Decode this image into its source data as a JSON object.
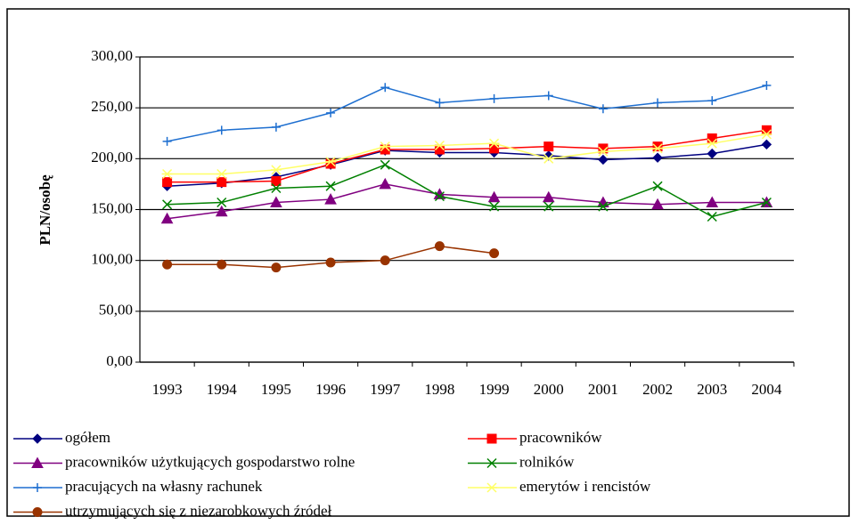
{
  "chart_data": {
    "type": "line",
    "y_label": "PLN/osobę",
    "categories": [
      "1993",
      "1994",
      "1995",
      "1996",
      "1997",
      "1998",
      "1999",
      "2000",
      "2001",
      "2002",
      "2003",
      "2004"
    ],
    "ylim": [
      0,
      300
    ],
    "yticks": [
      {
        "value": 0,
        "label": "0,00"
      },
      {
        "value": 50,
        "label": "50,00"
      },
      {
        "value": 100,
        "label": "100,00"
      },
      {
        "value": 150,
        "label": "150,00"
      },
      {
        "value": 200,
        "label": "200,00"
      },
      {
        "value": 250,
        "label": "250,00"
      },
      {
        "value": 300,
        "label": "300,00"
      }
    ],
    "grid": true,
    "series": [
      {
        "name": "ogółem",
        "color": "#000080",
        "marker": "diamond",
        "values": [
          173,
          176,
          182,
          194,
          208,
          206,
          206,
          203,
          199,
          201,
          205,
          214
        ]
      },
      {
        "name": "pracowników",
        "color": "#ff0000",
        "marker": "square",
        "values": [
          177,
          177,
          178,
          195,
          209,
          209,
          210,
          212,
          210,
          212,
          220,
          228
        ]
      },
      {
        "name": "pracowników użytkujących gospodarstwo rolne",
        "color": "#800080",
        "marker": "triangle",
        "values": [
          141,
          148,
          157,
          160,
          175,
          165,
          162,
          162,
          157,
          155,
          157,
          157
        ]
      },
      {
        "name": "rolników",
        "color": "#008000",
        "marker": "x",
        "values": [
          155,
          157,
          171,
          173,
          194,
          163,
          153,
          153,
          153,
          173,
          143,
          157
        ]
      },
      {
        "name": "pracujących na własny rachunek",
        "color": "#1e6fd0",
        "marker": "plus",
        "values": [
          217,
          228,
          231,
          245,
          270,
          255,
          259,
          262,
          249,
          255,
          257,
          272
        ]
      },
      {
        "name": "emerytów i rencistów",
        "color": "#ffff66",
        "marker": "star",
        "values": [
          185,
          185,
          189,
          197,
          212,
          213,
          215,
          200,
          207,
          210,
          215,
          224
        ]
      },
      {
        "name": "utrzymujących się z niezarobkowych źródeł",
        "color": "#993300",
        "marker": "circle",
        "values": [
          96,
          96,
          93,
          98,
          100,
          114,
          107,
          null,
          null,
          null,
          null,
          null
        ]
      }
    ]
  }
}
